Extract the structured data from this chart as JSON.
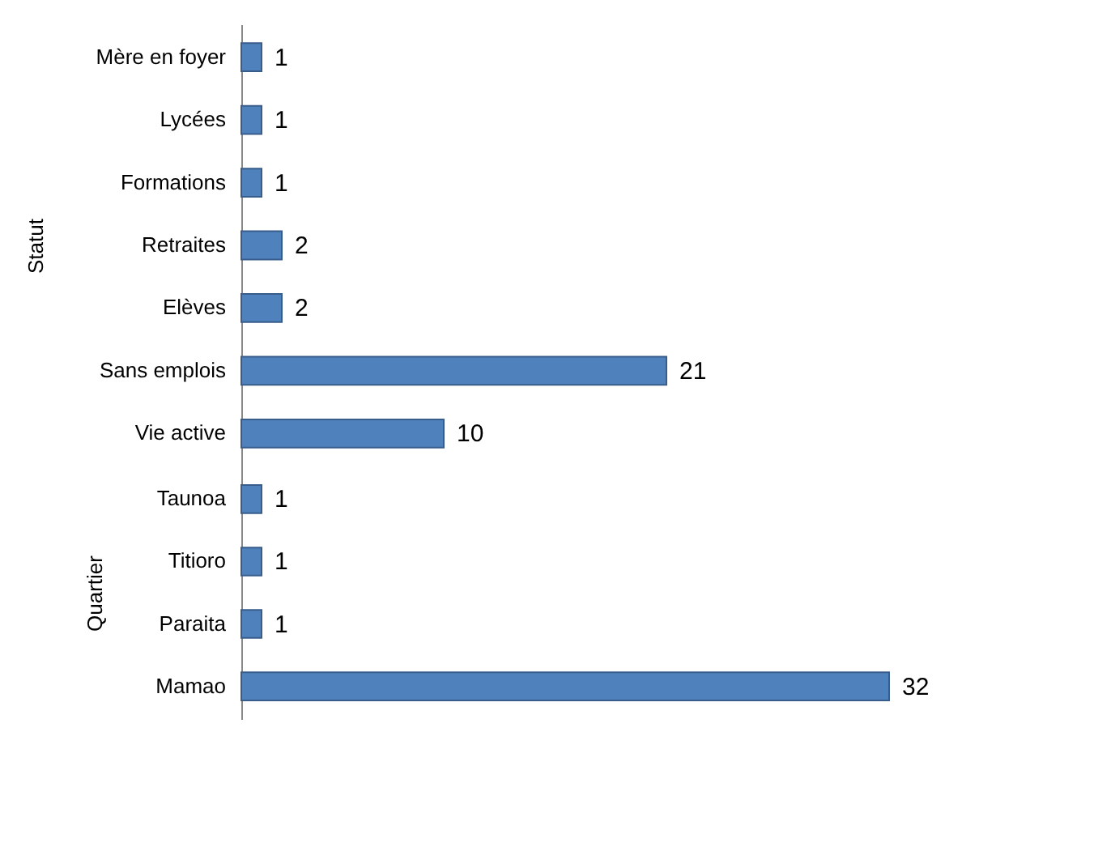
{
  "chart_data": [
    {
      "type": "bar",
      "orientation": "horizontal",
      "ylabel": "Statut",
      "categories": [
        "Mère en foyer",
        "Lycées",
        "Formations",
        "Retraites",
        "Elèves",
        "Sans emplois",
        "Vie active"
      ],
      "values": [
        1,
        1,
        1,
        2,
        2,
        21,
        10
      ],
      "color": "#4f81bd",
      "data_labels": true,
      "tick_labels": "y"
    },
    {
      "type": "bar",
      "orientation": "horizontal",
      "ylabel": "Quartier",
      "categories": [
        "Taunoa",
        "Titioro",
        "Paraita",
        "Mamao"
      ],
      "values": [
        1,
        1,
        1,
        32
      ],
      "color": "#4f81bd",
      "data_labels": true,
      "tick_labels": "y"
    }
  ]
}
